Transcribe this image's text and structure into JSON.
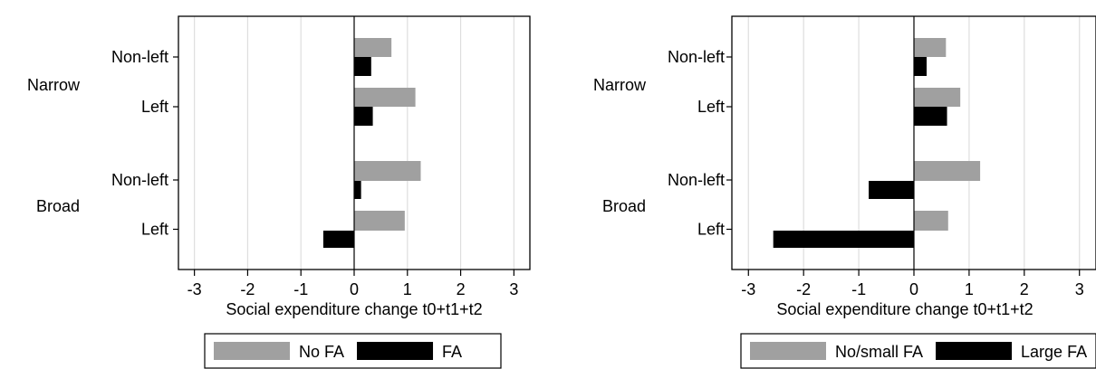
{
  "chart_data": [
    {
      "type": "bar",
      "orientation": "horizontal",
      "groups": [
        "Narrow",
        "Broad"
      ],
      "categories": [
        "Non-left",
        "Left"
      ],
      "series": [
        {
          "name": "No FA",
          "color": "#a0a0a0",
          "values": {
            "Narrow": {
              "Non-left": 0.7,
              "Left": 1.15
            },
            "Broad": {
              "Non-left": 1.25,
              "Left": 0.95
            }
          }
        },
        {
          "name": "FA",
          "color": "#000000",
          "values": {
            "Narrow": {
              "Non-left": 0.32,
              "Left": 0.35
            },
            "Broad": {
              "Non-left": 0.13,
              "Left": -0.58
            }
          }
        }
      ],
      "xlabel": "Social expenditure change t0+t1+t2",
      "xlim": [
        -3.3,
        3.3
      ],
      "xticks": [
        -3,
        -2,
        -1,
        0,
        1,
        2,
        3
      ],
      "grid": true,
      "legend": "bottom"
    },
    {
      "type": "bar",
      "orientation": "horizontal",
      "groups": [
        "Narrow",
        "Broad"
      ],
      "categories": [
        "Non-left",
        "Left"
      ],
      "series": [
        {
          "name": "No/small FA",
          "color": "#a0a0a0",
          "values": {
            "Narrow": {
              "Non-left": 0.58,
              "Left": 0.84
            },
            "Broad": {
              "Non-left": 1.2,
              "Left": 0.62
            }
          }
        },
        {
          "name": "Large FA",
          "color": "#000000",
          "values": {
            "Narrow": {
              "Non-left": 0.23,
              "Left": 0.6
            },
            "Broad": {
              "Non-left": -0.82,
              "Left": -2.55
            }
          }
        }
      ],
      "xlabel": "Social expenditure change t0+t1+t2",
      "xlim": [
        -3.3,
        3.3
      ],
      "xticks": [
        -3,
        -2,
        -1,
        0,
        1,
        2,
        3
      ],
      "grid": true,
      "legend": "bottom"
    }
  ]
}
